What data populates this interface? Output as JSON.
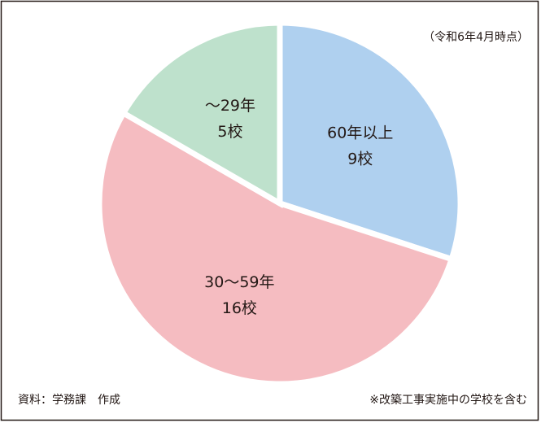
{
  "chart_data": {
    "type": "pie",
    "categories": [
      "60年以上",
      "30～59年",
      "～29年"
    ],
    "values": [
      9,
      16,
      5
    ],
    "value_labels": [
      "9校",
      "16校",
      "5校"
    ],
    "colors": [
      "#afd0ef",
      "#f5bcc1",
      "#bee1cc"
    ],
    "note": "（令和6年4月時点）",
    "source": "資料：学務課　作成",
    "footnote": "※改築工事実施中の学校を含む"
  }
}
